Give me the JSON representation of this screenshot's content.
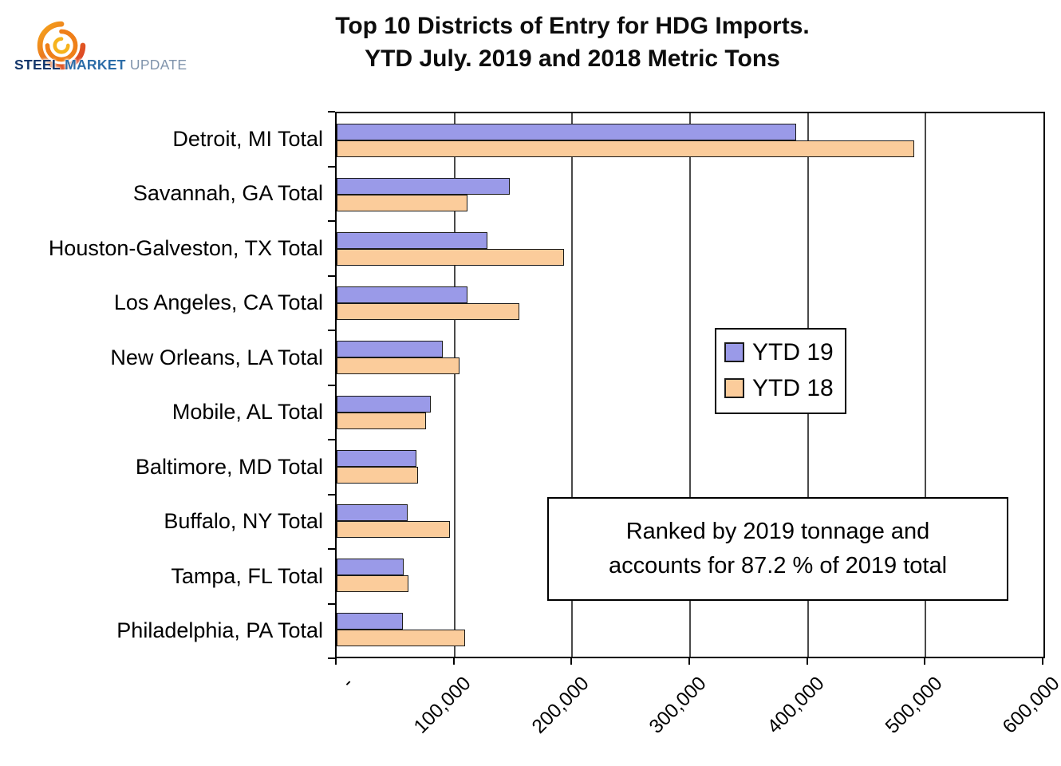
{
  "logo": {
    "steel": "STEEL",
    "market": " MARKET",
    "update": " UPDATE"
  },
  "title": {
    "line1": "Top 10 Districts of Entry for HDG Imports.",
    "line2": "YTD July. 2019 and 2018 Metric Tons"
  },
  "annotation": {
    "line1": "Ranked by 2019 tonnage and",
    "line2": "accounts for 87.2 % of 2019 total"
  },
  "chart_data": {
    "type": "bar",
    "orientation": "horizontal",
    "title": "Top 10 Districts of Entry for HDG Imports. YTD July. 2019 and 2018 Metric Tons",
    "units": "Metric Tons",
    "categories": [
      "Detroit, MI Total",
      "Savannah, GA Total",
      "Houston-Galveston, TX Total",
      "Los Angeles, CA Total",
      "New Orleans, LA Total",
      "Mobile, AL Total",
      "Baltimore, MD Total",
      "Buffalo, NY Total",
      "Tampa, FL Total",
      "Philadelphia, PA Total"
    ],
    "series": [
      {
        "name": "YTD 19",
        "color": "#9a9ae8",
        "values": [
          390000,
          147000,
          128000,
          111000,
          90000,
          80000,
          68000,
          60000,
          57000,
          56000
        ]
      },
      {
        "name": "YTD 18",
        "color": "#fbcc9b",
        "values": [
          490000,
          111000,
          193000,
          155000,
          104000,
          76000,
          69000,
          96000,
          61000,
          109000
        ]
      }
    ],
    "xlim": [
      0,
      600000
    ],
    "x_ticks": [
      "-",
      "100,000",
      "200,000",
      "300,000",
      "400,000",
      "500,000",
      "600,000"
    ],
    "grid": true,
    "legend_position": "middle-right"
  }
}
